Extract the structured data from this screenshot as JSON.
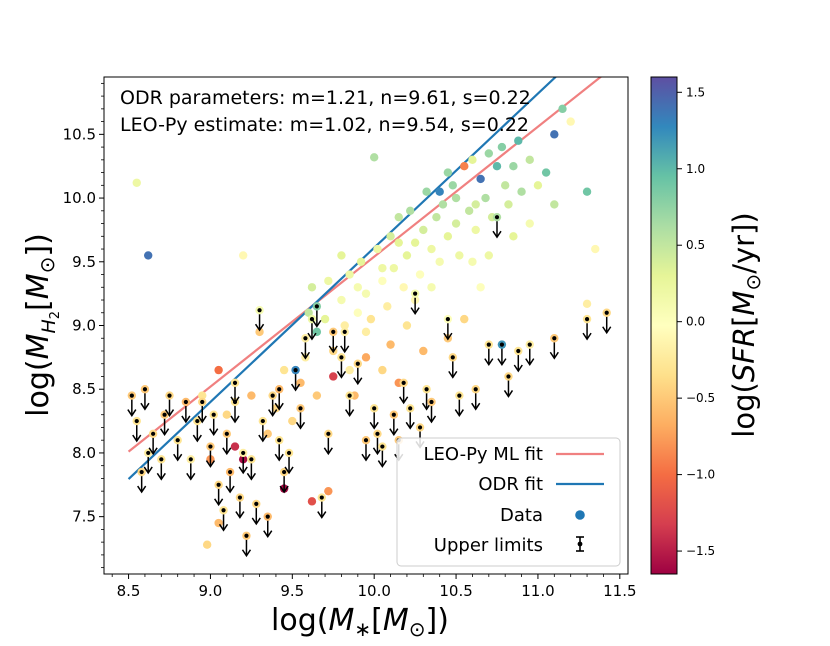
{
  "chart_data": {
    "type": "scatter",
    "annotations": [
      "ODR parameters: m=1.21, n=9.61, s=0.22",
      "LEO-Py estimate: m=1.02, n=9.54, s=0.22"
    ],
    "xlabel": "log(M*[M⊙])",
    "ylabel": "log(MH2[M⊙])",
    "colorbar_label": "log(SFR[M⊙/yr])",
    "xlim": [
      8.35,
      11.55
    ],
    "ylim": [
      7.05,
      10.95
    ],
    "x_ticks": [
      8.5,
      9.0,
      9.5,
      10.0,
      10.5,
      11.0,
      11.5
    ],
    "x_tick_labels": [
      "8.5",
      "9.0",
      "9.5",
      "10.0",
      "10.5",
      "11.0",
      "11.5"
    ],
    "y_ticks": [
      7.5,
      8.0,
      8.5,
      9.0,
      9.5,
      10.0,
      10.5
    ],
    "y_tick_labels": [
      "7.5",
      "8.0",
      "8.5",
      "9.0",
      "9.5",
      "10.0",
      "10.5"
    ],
    "colorbar_range": [
      -1.65,
      1.6
    ],
    "colorbar_ticks": [
      -1.5,
      -1.0,
      -0.5,
      0.0,
      0.5,
      1.0,
      1.5
    ],
    "colorbar_tick_labels": [
      "−1.5",
      "−1.0",
      "−0.5",
      "0.0",
      "0.5",
      "1.0",
      "1.5"
    ],
    "colormap": "Spectral",
    "colormap_stops": [
      "#9e0142",
      "#d53e4f",
      "#f46d43",
      "#fdae61",
      "#fee08b",
      "#ffffbf",
      "#e6f598",
      "#abdda4",
      "#66c2a5",
      "#3288bd",
      "#5e4fa2"
    ],
    "fits": [
      {
        "name": "LEO-Py ML fit",
        "slope": 1.02,
        "intercept": 9.54,
        "pivot": 10.0,
        "x_range": [
          8.5,
          11.42
        ],
        "color": "#f08080"
      },
      {
        "name": "ODR fit",
        "slope": 1.21,
        "intercept": 9.61,
        "pivot": 10.0,
        "x_range": [
          8.5,
          11.42
        ],
        "color": "#1f77b4"
      }
    ],
    "legend": {
      "location": "lower-right",
      "entries": [
        "LEO-Py ML fit",
        "ODR fit",
        "Data",
        "Upper limits"
      ]
    },
    "detections": [
      [
        8.55,
        10.12,
        0.2
      ],
      [
        8.62,
        9.55,
        1.4
      ],
      [
        9.2,
        9.55,
        -0.1
      ],
      [
        9.05,
        8.65,
        -1.0
      ],
      [
        9.3,
        8.95,
        -0.5
      ],
      [
        9.4,
        8.35,
        -0.4
      ],
      [
        9.55,
        8.55,
        -0.6
      ],
      [
        9.6,
        9.1,
        0.5
      ],
      [
        9.62,
        9.3,
        0.4
      ],
      [
        9.65,
        8.95,
        0.9
      ],
      [
        9.7,
        9.05,
        0.3
      ],
      [
        9.75,
        8.6,
        -1.3
      ],
      [
        9.72,
        9.35,
        0.2
      ],
      [
        9.8,
        9.2,
        0.1
      ],
      [
        9.85,
        9.4,
        0.2
      ],
      [
        9.82,
        9.0,
        -0.2
      ],
      [
        9.9,
        9.1,
        0.0
      ],
      [
        9.92,
        9.5,
        0.3
      ],
      [
        9.95,
        9.25,
        0.1
      ],
      [
        9.98,
        9.05,
        -0.3
      ],
      [
        10.0,
        10.32,
        0.6
      ],
      [
        10.02,
        9.6,
        0.2
      ],
      [
        10.05,
        9.35,
        0.0
      ],
      [
        10.08,
        9.15,
        -0.2
      ],
      [
        10.1,
        9.7,
        0.4
      ],
      [
        10.12,
        9.45,
        0.2
      ],
      [
        10.15,
        9.85,
        0.5
      ],
      [
        10.18,
        9.3,
        -0.1
      ],
      [
        10.2,
        9.55,
        0.3
      ],
      [
        10.22,
        9.9,
        0.6
      ],
      [
        10.25,
        9.65,
        0.3
      ],
      [
        10.28,
        9.4,
        0.0
      ],
      [
        10.3,
        9.75,
        0.4
      ],
      [
        10.32,
        10.05,
        0.7
      ],
      [
        10.35,
        9.6,
        0.2
      ],
      [
        10.38,
        9.85,
        0.5
      ],
      [
        10.4,
        9.5,
        0.1
      ],
      [
        10.42,
        9.95,
        0.6
      ],
      [
        10.45,
        9.7,
        0.3
      ],
      [
        10.48,
        10.1,
        0.7
      ],
      [
        10.5,
        9.8,
        0.4
      ],
      [
        10.52,
        9.55,
        0.2
      ],
      [
        10.55,
        10.25,
        -0.9
      ],
      [
        10.58,
        9.9,
        0.5
      ],
      [
        10.6,
        10.3,
        0.3
      ],
      [
        10.62,
        9.75,
        0.2
      ],
      [
        10.65,
        10.15,
        1.4
      ],
      [
        10.68,
        10.0,
        0.6
      ],
      [
        10.7,
        10.35,
        0.7
      ],
      [
        10.72,
        9.85,
        0.4
      ],
      [
        10.75,
        10.25,
        1.0
      ],
      [
        10.78,
        10.4,
        0.8
      ],
      [
        10.8,
        10.1,
        0.5
      ],
      [
        10.82,
        9.95,
        0.4
      ],
      [
        10.85,
        10.25,
        0.7
      ],
      [
        10.88,
        10.45,
        1.0
      ],
      [
        10.9,
        10.05,
        0.6
      ],
      [
        10.95,
        10.3,
        0.5
      ],
      [
        11.0,
        10.1,
        0.3
      ],
      [
        11.05,
        10.2,
        0.9
      ],
      [
        11.1,
        10.5,
        1.4
      ],
      [
        11.15,
        10.7,
        0.8
      ],
      [
        11.2,
        10.6,
        -0.1
      ],
      [
        11.3,
        10.05,
        0.9
      ],
      [
        11.35,
        9.6,
        -0.1
      ],
      [
        11.3,
        9.17,
        -0.2
      ],
      [
        10.4,
        10.05,
        1.3
      ],
      [
        10.2,
        9.0,
        -0.3
      ],
      [
        10.1,
        8.85,
        -0.6
      ],
      [
        9.95,
        8.75,
        -0.7
      ],
      [
        9.5,
        8.25,
        -0.4
      ],
      [
        9.35,
        8.15,
        -0.5
      ],
      [
        9.25,
        8.45,
        -0.6
      ],
      [
        9.1,
        8.3,
        -0.4
      ],
      [
        9.0,
        7.95,
        -0.8
      ],
      [
        9.15,
        8.05,
        -1.4
      ],
      [
        8.95,
        8.45,
        -0.3
      ],
      [
        9.05,
        7.45,
        -0.6
      ],
      [
        8.98,
        7.28,
        -0.4
      ],
      [
        9.2,
        7.95,
        -1.6
      ],
      [
        9.45,
        7.72,
        -1.6
      ],
      [
        9.62,
        7.62,
        -1.2
      ],
      [
        9.72,
        7.7,
        -0.8
      ],
      [
        9.45,
        8.65,
        -0.3
      ],
      [
        9.58,
        8.75,
        -0.2
      ],
      [
        9.65,
        8.45,
        -0.5
      ],
      [
        9.75,
        8.8,
        -0.4
      ],
      [
        9.85,
        8.65,
        -0.2
      ],
      [
        9.88,
        8.45,
        -0.6
      ],
      [
        9.95,
        8.95,
        -0.2
      ],
      [
        10.05,
        8.65,
        -0.4
      ],
      [
        10.15,
        8.55,
        -0.8
      ],
      [
        10.3,
        8.8,
        -0.6
      ],
      [
        10.45,
        8.9,
        -0.5
      ],
      [
        10.55,
        9.05,
        -0.4
      ],
      [
        10.65,
        9.3,
        0.0
      ],
      [
        10.7,
        9.55,
        0.2
      ],
      [
        10.85,
        9.7,
        0.3
      ],
      [
        10.95,
        9.8,
        0.1
      ],
      [
        11.1,
        9.95,
        0.5
      ],
      [
        10.25,
        9.2,
        -0.1
      ],
      [
        10.35,
        9.3,
        0.1
      ],
      [
        10.6,
        9.5,
        0.1
      ],
      [
        10.15,
        9.65,
        0.3
      ],
      [
        10.05,
        9.45,
        0.2
      ],
      [
        9.9,
        9.3,
        0.1
      ],
      [
        9.8,
        9.55,
        0.3
      ],
      [
        10.5,
        10.0,
        0.6
      ],
      [
        10.45,
        10.2,
        0.7
      ],
      [
        10.62,
        9.95,
        0.4
      ]
    ],
    "upper_limits": [
      [
        8.52,
        8.45,
        -0.5
      ],
      [
        8.55,
        8.25,
        -0.3
      ],
      [
        8.58,
        7.85,
        -0.4
      ],
      [
        8.62,
        8.0,
        -0.2
      ],
      [
        8.6,
        8.5,
        -0.5
      ],
      [
        8.65,
        8.15,
        -0.4
      ],
      [
        8.7,
        7.95,
        -0.3
      ],
      [
        8.72,
        8.3,
        -0.5
      ],
      [
        8.75,
        8.45,
        -0.4
      ],
      [
        8.8,
        8.1,
        -0.3
      ],
      [
        8.85,
        8.4,
        -0.6
      ],
      [
        8.88,
        7.95,
        -0.2
      ],
      [
        8.92,
        8.25,
        -0.3
      ],
      [
        8.95,
        8.4,
        -0.4
      ],
      [
        9.0,
        8.05,
        -0.5
      ],
      [
        9.02,
        8.3,
        -0.3
      ],
      [
        9.05,
        7.75,
        -0.4
      ],
      [
        9.08,
        7.55,
        -0.3
      ],
      [
        9.1,
        8.15,
        -0.5
      ],
      [
        9.12,
        7.85,
        -0.6
      ],
      [
        9.15,
        8.4,
        -0.3
      ],
      [
        9.18,
        7.65,
        -0.4
      ],
      [
        9.2,
        8.0,
        -0.2
      ],
      [
        9.22,
        7.35,
        -0.5
      ],
      [
        9.25,
        7.95,
        -0.3
      ],
      [
        9.28,
        7.6,
        -0.4
      ],
      [
        9.3,
        9.12,
        0.1
      ],
      [
        9.32,
        8.25,
        -0.3
      ],
      [
        9.35,
        7.5,
        -0.6
      ],
      [
        9.38,
        8.45,
        -0.4
      ],
      [
        9.42,
        8.1,
        -0.3
      ],
      [
        9.45,
        7.85,
        -0.4
      ],
      [
        9.48,
        8.0,
        -0.3
      ],
      [
        9.52,
        8.65,
        1.3
      ],
      [
        9.55,
        8.35,
        -0.5
      ],
      [
        9.58,
        8.9,
        -0.2
      ],
      [
        9.62,
        9.05,
        0.2
      ],
      [
        9.65,
        9.15,
        0.8
      ],
      [
        9.68,
        7.65,
        -0.3
      ],
      [
        9.72,
        8.15,
        -0.4
      ],
      [
        9.75,
        8.95,
        -0.5
      ],
      [
        9.8,
        8.75,
        -0.3
      ],
      [
        9.82,
        8.95,
        -0.2
      ],
      [
        9.85,
        8.45,
        -0.3
      ],
      [
        9.9,
        8.7,
        -0.4
      ],
      [
        9.95,
        8.1,
        -0.5
      ],
      [
        10.0,
        8.35,
        -0.3
      ],
      [
        10.02,
        8.15,
        -0.4
      ],
      [
        10.05,
        8.05,
        -0.3
      ],
      [
        10.12,
        8.3,
        -0.5
      ],
      [
        10.18,
        8.55,
        -0.4
      ],
      [
        10.22,
        8.35,
        -0.3
      ],
      [
        10.25,
        9.25,
        0.1
      ],
      [
        10.28,
        8.2,
        -0.4
      ],
      [
        10.32,
        8.5,
        -0.3
      ],
      [
        10.35,
        8.4,
        -0.5
      ],
      [
        10.45,
        9.05,
        0.0
      ],
      [
        10.48,
        8.75,
        -0.4
      ],
      [
        10.52,
        8.45,
        -0.3
      ],
      [
        10.62,
        8.5,
        -0.4
      ],
      [
        10.7,
        8.85,
        -0.3
      ],
      [
        10.75,
        9.85,
        0.6
      ],
      [
        10.78,
        8.85,
        1.2
      ],
      [
        10.82,
        8.6,
        -0.4
      ],
      [
        10.88,
        8.8,
        -0.3
      ],
      [
        10.95,
        8.85,
        -0.2
      ],
      [
        11.1,
        8.9,
        -0.5
      ],
      [
        11.3,
        9.05,
        -0.3
      ],
      [
        11.42,
        9.1,
        -0.4
      ],
      [
        10.15,
        8.1,
        -0.5
      ],
      [
        9.42,
        8.5,
        -0.6
      ],
      [
        9.15,
        8.55,
        -0.3
      ]
    ]
  }
}
